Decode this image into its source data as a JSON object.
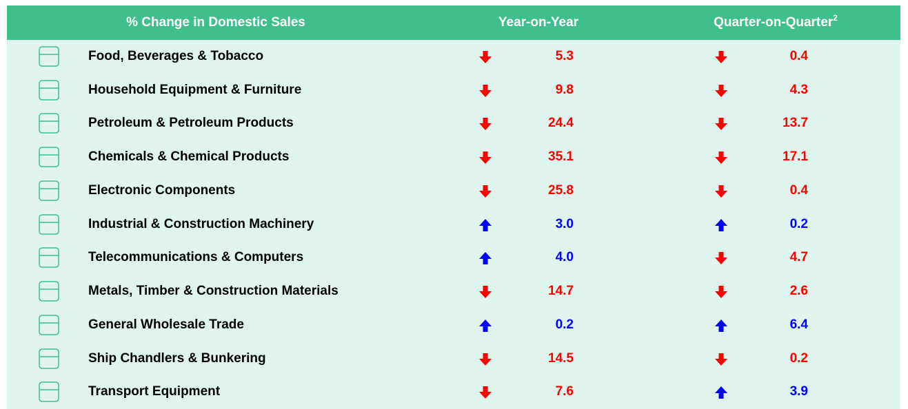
{
  "header": {
    "title": "% Change in Domestic Sales",
    "yoy": "Year-on-Year",
    "qoq": "Quarter-on-Quarter",
    "qoq_note": "2"
  },
  "table": {
    "rows": [
      {
        "name": "Food, Beverages & Tobacco",
        "yoy": "5.3",
        "yoy_dir": "down",
        "qoq": "0.4",
        "qoq_dir": "down"
      },
      {
        "name": "Household Equipment & Furniture",
        "yoy": "9.8",
        "yoy_dir": "down",
        "qoq": "4.3",
        "qoq_dir": "down"
      },
      {
        "name": "Petroleum & Petroleum Products",
        "yoy": "24.4",
        "yoy_dir": "down",
        "qoq": "13.7",
        "qoq_dir": "down"
      },
      {
        "name": "Chemicals & Chemical Products",
        "yoy": "35.1",
        "yoy_dir": "down",
        "qoq": "17.1",
        "qoq_dir": "down"
      },
      {
        "name": "Electronic Components",
        "yoy": "25.8",
        "yoy_dir": "down",
        "qoq": "0.4",
        "qoq_dir": "down"
      },
      {
        "name": "Industrial & Construction Machinery",
        "yoy": "3.0",
        "yoy_dir": "up",
        "qoq": "0.2",
        "qoq_dir": "up"
      },
      {
        "name": "Telecommunications & Computers",
        "yoy": "4.0",
        "yoy_dir": "up",
        "qoq": "4.7",
        "qoq_dir": "down"
      },
      {
        "name": "Metals, Timber & Construction Materials",
        "yoy": "14.7",
        "yoy_dir": "down",
        "qoq": "2.6",
        "qoq_dir": "down"
      },
      {
        "name": "General Wholesale Trade",
        "yoy": "0.2",
        "yoy_dir": "up",
        "qoq": "6.4",
        "qoq_dir": "up"
      },
      {
        "name": "Ship Chandlers & Bunkering",
        "yoy": "14.5",
        "yoy_dir": "down",
        "qoq": "0.2",
        "qoq_dir": "down"
      },
      {
        "name": "Transport Equipment",
        "yoy": "7.6",
        "yoy_dir": "down",
        "qoq": "3.9",
        "qoq_dir": "up"
      }
    ]
  }
}
